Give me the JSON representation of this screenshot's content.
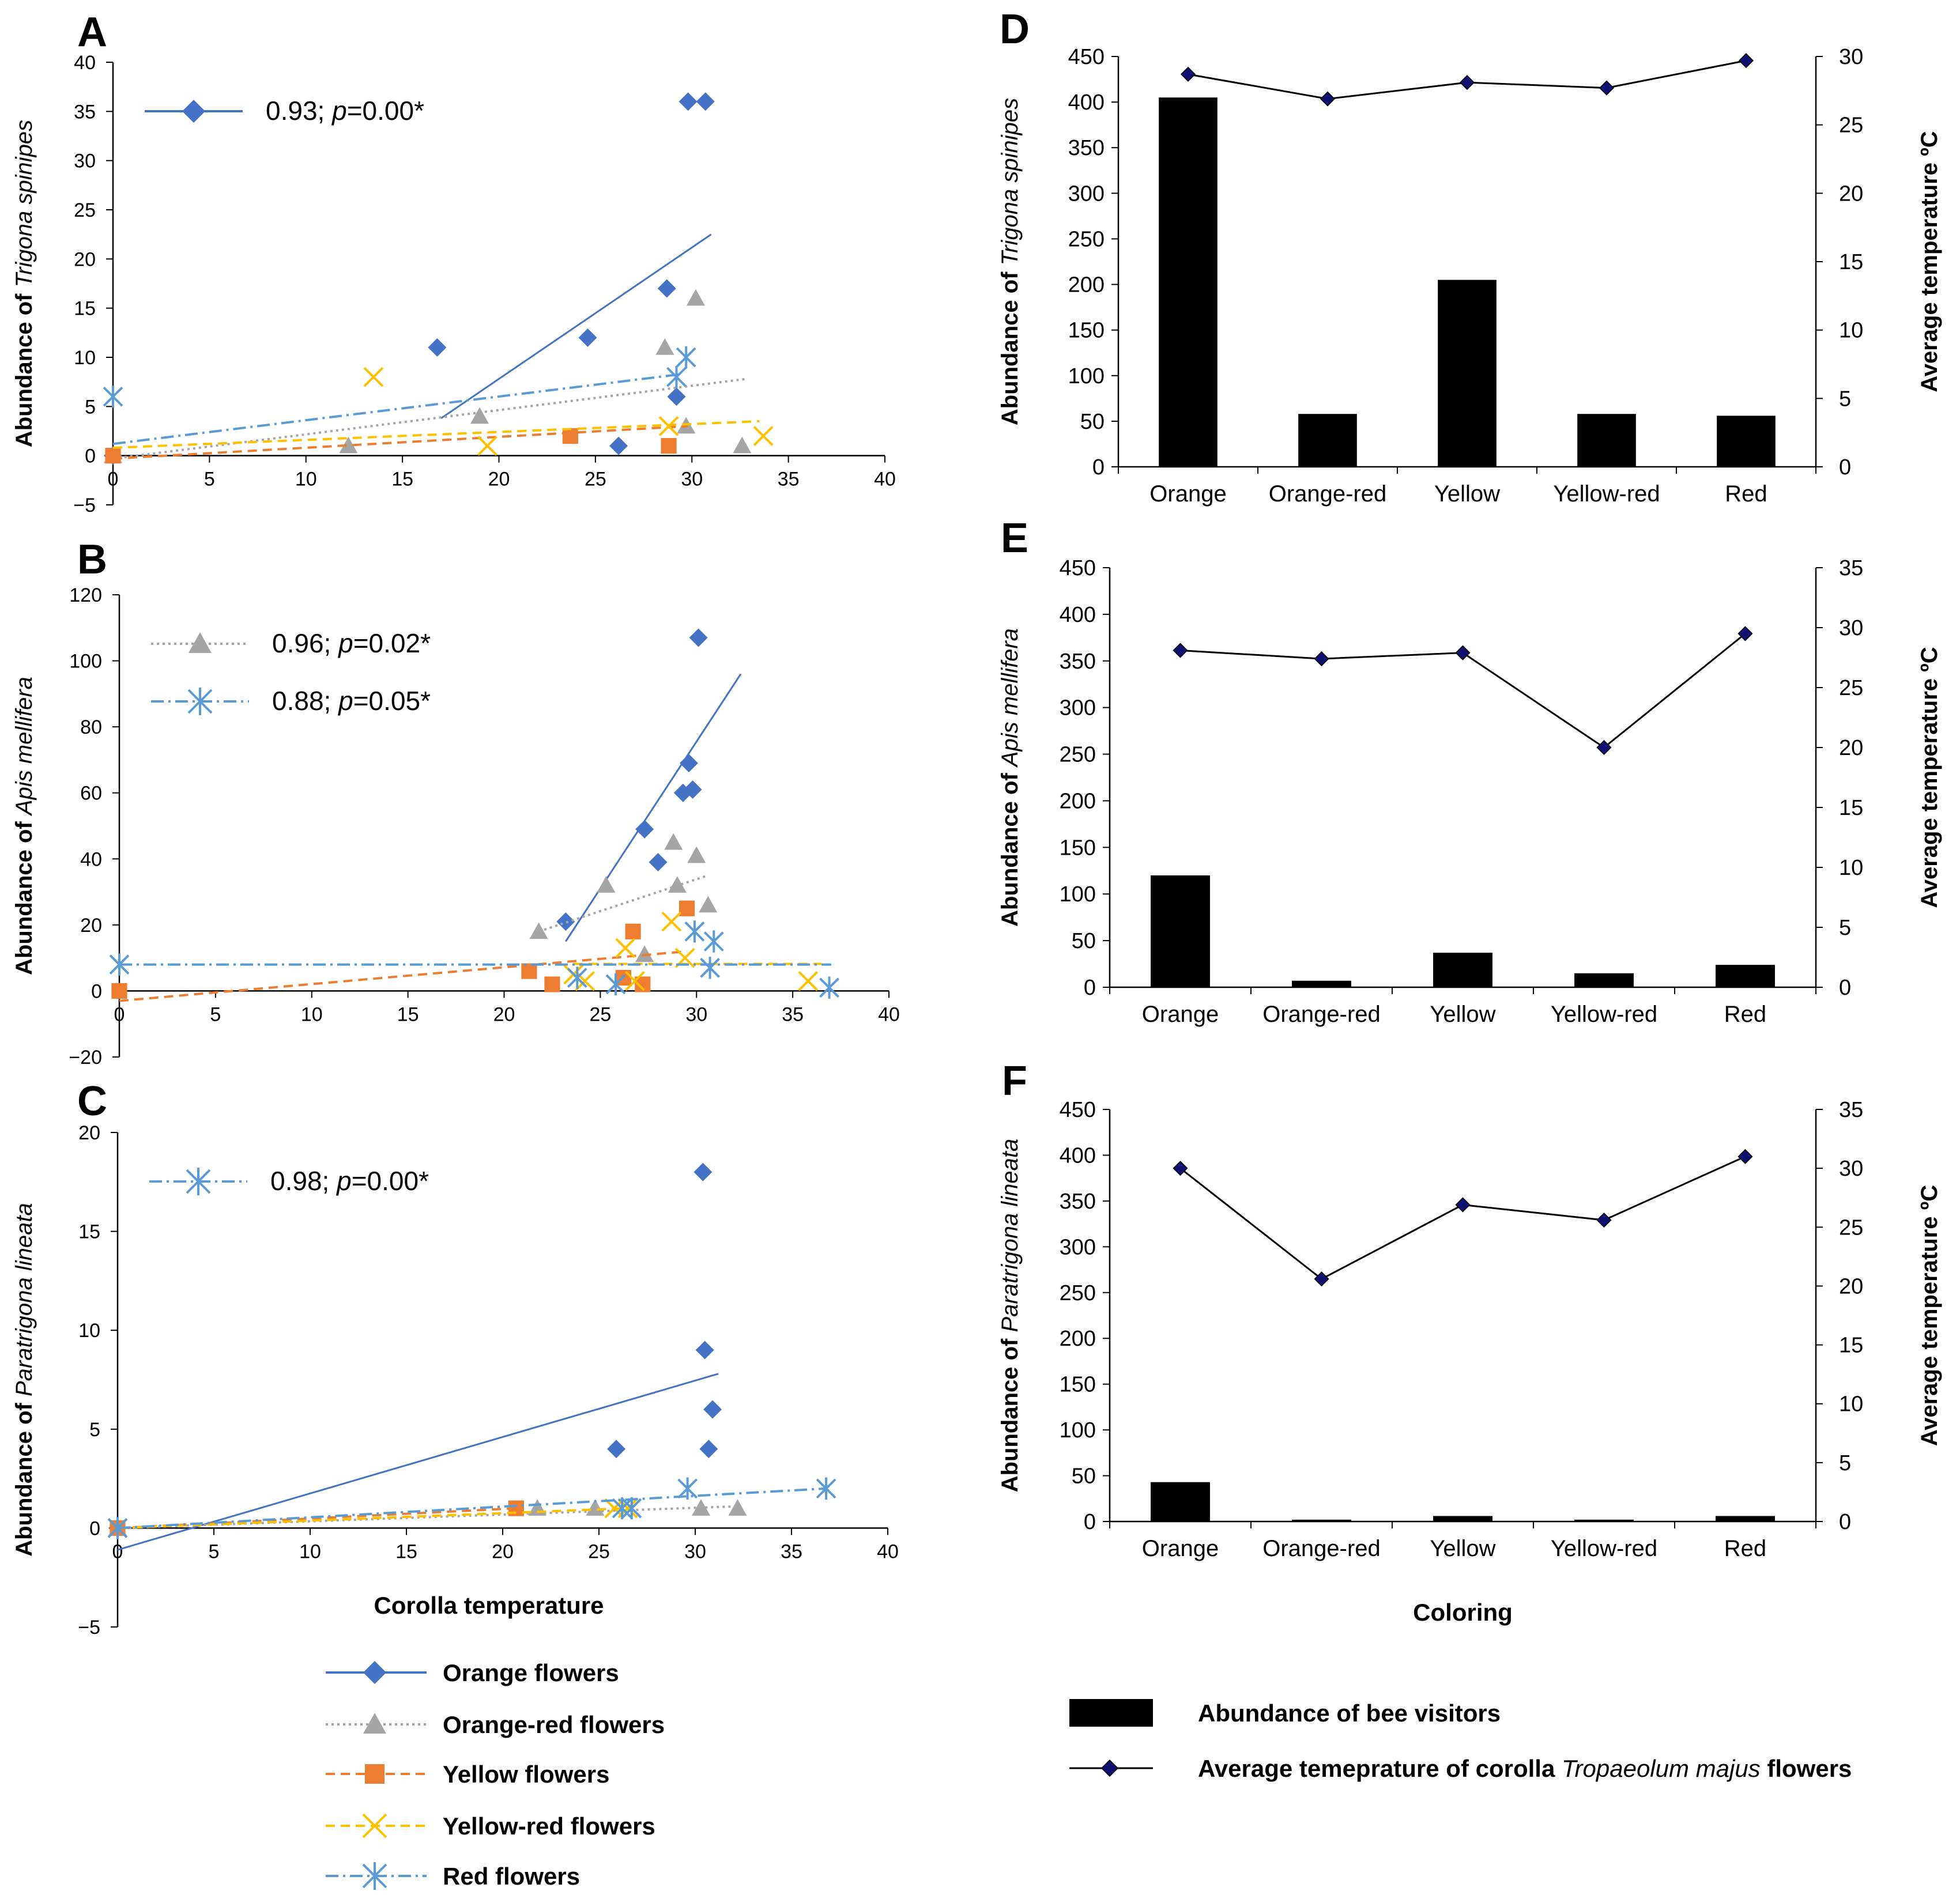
{
  "legend_left": [
    {
      "name": "Orange flowers",
      "color": "#4472C4",
      "marker": "diamond",
      "dash": "solid"
    },
    {
      "name": "Orange-red flowers",
      "color": "#A5A5A5",
      "marker": "triangle",
      "dash": "dotted"
    },
    {
      "name": "Yellow flowers",
      "color": "#ED7D31",
      "marker": "square",
      "dash": "dashed"
    },
    {
      "name": "Yellow-red flowers",
      "color": "#FFC000",
      "marker": "x",
      "dash": "dashed"
    },
    {
      "name": "Red flowers",
      "color": "#5B9BD5",
      "marker": "star",
      "dash": "dashdot"
    }
  ],
  "legend_right": [
    {
      "name": "Abundance of bee visitors",
      "kind": "bar"
    },
    {
      "name_prefix": "Average temeprature of corolla ",
      "name_italic": "Tropaeolum majus",
      "name_suffix": " flowers",
      "kind": "line"
    }
  ],
  "chart_data": [
    {
      "panel": "A",
      "type": "scatter",
      "ylabel_prefix": "Abundance of ",
      "ylabel_italic": "Trigona spinipes",
      "xlabel": "",
      "xlim": [
        0,
        40
      ],
      "ylim": [
        -5,
        40
      ],
      "xticks": [
        "0",
        "5",
        "10",
        "15",
        "20",
        "25",
        "30",
        "35",
        "40"
      ],
      "yticks": [
        "−5",
        "0",
        "5",
        "10",
        "15",
        "20",
        "25",
        "30",
        "35",
        "40"
      ],
      "series": [
        {
          "name": "Orange flowers",
          "points": [
            [
              0,
              0
            ],
            [
              16.8,
              11
            ],
            [
              24.6,
              12
            ],
            [
              26.2,
              1
            ],
            [
              28.7,
              17
            ],
            [
              29.2,
              6
            ],
            [
              29.8,
              36
            ],
            [
              30.7,
              36
            ]
          ],
          "trend": [
            [
              17,
              3.8
            ],
            [
              31,
              22.5
            ]
          ]
        },
        {
          "name": "Orange-red flowers",
          "points": [
            [
              0,
              0
            ],
            [
              12.2,
              1
            ],
            [
              19,
              4
            ],
            [
              28.6,
              11
            ],
            [
              29.7,
              3
            ],
            [
              30.2,
              16
            ],
            [
              32.6,
              1
            ]
          ],
          "trend": [
            [
              0,
              -0.3
            ],
            [
              32.8,
              7.8
            ]
          ]
        },
        {
          "name": "Yellow flowers",
          "points": [
            [
              0,
              0
            ],
            [
              23.7,
              2
            ],
            [
              28.8,
              1
            ]
          ],
          "trend": [
            [
              0,
              -0.3
            ],
            [
              29.8,
              3
            ]
          ]
        },
        {
          "name": "Yellow-red flowers",
          "points": [
            [
              13.5,
              8
            ],
            [
              19.4,
              1
            ],
            [
              28.8,
              3
            ],
            [
              33.7,
              2
            ]
          ],
          "trend": [
            [
              0,
              0.8
            ],
            [
              33.5,
              3.5
            ]
          ]
        },
        {
          "name": "Red flowers",
          "points": [
            [
              0,
              6
            ],
            [
              29.2,
              8
            ],
            [
              29.7,
              10
            ]
          ],
          "trend": [
            [
              0,
              1.2
            ],
            [
              29.5,
              8.3
            ]
          ]
        }
      ],
      "stat_legend": [
        {
          "series": "Orange flowers",
          "r": "0.93",
          "p": "p",
          "rest": "=0.00*"
        }
      ]
    },
    {
      "panel": "B",
      "type": "scatter",
      "ylabel_prefix": "Abundance of ",
      "ylabel_italic": "Apis mellifera",
      "xlabel": "",
      "xlim": [
        0,
        40
      ],
      "ylim": [
        -20,
        120
      ],
      "xticks": [
        "0",
        "5",
        "10",
        "15",
        "20",
        "25",
        "30",
        "35",
        "40"
      ],
      "yticks": [
        "−20",
        "0",
        "20",
        "40",
        "60",
        "80",
        "100",
        "120"
      ],
      "series": [
        {
          "name": "Orange flowers",
          "points": [
            [
              23.2,
              21
            ],
            [
              27.3,
              49
            ],
            [
              28,
              39
            ],
            [
              29.3,
              60
            ],
            [
              29.6,
              69
            ],
            [
              29.8,
              61
            ],
            [
              30.1,
              107
            ]
          ],
          "trend": [
            [
              23.2,
              15
            ],
            [
              32.3,
              96
            ]
          ]
        },
        {
          "name": "Orange-red flowers",
          "points": [
            [
              21.8,
              18
            ],
            [
              25.3,
              32
            ],
            [
              27.3,
              11
            ],
            [
              28.8,
              45
            ],
            [
              29,
              32
            ],
            [
              30,
              41
            ],
            [
              30.6,
              26
            ]
          ],
          "trend": [
            [
              21.8,
              18
            ],
            [
              30.6,
              35
            ]
          ]
        },
        {
          "name": "Yellow flowers",
          "points": [
            [
              0,
              0
            ],
            [
              21.3,
              6
            ],
            [
              22.5,
              2
            ],
            [
              26.2,
              4
            ],
            [
              26.7,
              18
            ],
            [
              27.2,
              2
            ],
            [
              29.5,
              25
            ]
          ],
          "trend": [
            [
              0,
              -3
            ],
            [
              29.5,
              12
            ]
          ]
        },
        {
          "name": "Yellow-red flowers",
          "points": [
            [
              23.6,
              5
            ],
            [
              24.2,
              3
            ],
            [
              26.3,
              13
            ],
            [
              26.8,
              3
            ],
            [
              28.7,
              21
            ],
            [
              29.4,
              10
            ],
            [
              35.8,
              3
            ]
          ],
          "trend": [
            [
              23.6,
              8.2
            ],
            [
              36.5,
              8.2
            ]
          ]
        },
        {
          "name": "Red flowers",
          "points": [
            [
              0,
              8
            ],
            [
              23.8,
              4
            ],
            [
              25.8,
              2
            ],
            [
              29.9,
              18
            ],
            [
              30.7,
              7
            ],
            [
              30.9,
              15
            ],
            [
              36.9,
              1
            ]
          ],
          "trend": [
            [
              0,
              8
            ],
            [
              37,
              8
            ]
          ]
        }
      ],
      "stat_legend": [
        {
          "series": "Orange-red flowers",
          "r": "0.96",
          "p": "p",
          "rest": "=0.02*"
        },
        {
          "series": "Red flowers",
          "r": "0.88",
          "p": "p",
          "rest": "=0.05*"
        }
      ]
    },
    {
      "panel": "C",
      "type": "scatter",
      "ylabel_prefix": "Abundance of ",
      "ylabel_italic": "Paratrigona lineata",
      "xlabel": "Corolla temperature",
      "xlim": [
        0,
        40
      ],
      "ylim": [
        -5,
        20
      ],
      "xticks": [
        "0",
        "5",
        "10",
        "15",
        "20",
        "25",
        "30",
        "35",
        "40"
      ],
      "yticks": [
        "−5",
        "0",
        "5",
        "10",
        "15",
        "20"
      ],
      "series": [
        {
          "name": "Orange flowers",
          "points": [
            [
              0,
              0
            ],
            [
              25.9,
              4
            ],
            [
              30.4,
              18
            ],
            [
              30.5,
              9
            ],
            [
              30.7,
              4
            ],
            [
              30.9,
              6
            ]
          ],
          "trend": [
            [
              0,
              -1.1
            ],
            [
              31.2,
              7.8
            ]
          ]
        },
        {
          "name": "Orange-red flowers",
          "points": [
            [
              0,
              0
            ],
            [
              21.8,
              1
            ],
            [
              24.8,
              1
            ],
            [
              30.3,
              1
            ],
            [
              32.2,
              1
            ]
          ],
          "trend": [
            [
              0,
              0
            ],
            [
              32.2,
              1.1
            ]
          ]
        },
        {
          "name": "Yellow flowers",
          "points": [
            [
              0,
              0
            ],
            [
              20.7,
              1
            ]
          ],
          "trend": [
            [
              0,
              0
            ],
            [
              20.7,
              1
            ]
          ]
        },
        {
          "name": "Yellow-red flowers",
          "points": [
            [
              0,
              0
            ],
            [
              25.8,
              1
            ],
            [
              26.5,
              1
            ]
          ],
          "trend": [
            [
              0,
              0
            ],
            [
              26.5,
              1
            ]
          ]
        },
        {
          "name": "Red flowers",
          "points": [
            [
              0,
              0
            ],
            [
              26.2,
              1
            ],
            [
              26.7,
              1
            ],
            [
              29.6,
              2
            ],
            [
              36.8,
              2
            ]
          ],
          "trend": [
            [
              0,
              0
            ],
            [
              36.8,
              2
            ]
          ]
        }
      ],
      "stat_legend": [
        {
          "series": "Red flowers",
          "r": "0.98",
          "p": "p",
          "rest": "=0.00*"
        }
      ]
    },
    {
      "panel": "D",
      "type": "bar+line",
      "ylabel_prefix": "Abundance of ",
      "ylabel_italic": "Trigona spinipes",
      "y2label": "Average temperature ºC",
      "xlabel": "",
      "categories": [
        "Orange",
        "Orange-red",
        "Yellow",
        "Yellow-red",
        "Red"
      ],
      "bars": [
        405,
        58,
        205,
        58,
        56
      ],
      "line": [
        28.7,
        26.9,
        28.1,
        27.7,
        29.7
      ],
      "ylim": [
        0,
        450
      ],
      "y2lim": [
        0,
        30
      ],
      "yticks": [
        "0",
        "50",
        "100",
        "150",
        "200",
        "250",
        "300",
        "350",
        "400",
        "450"
      ],
      "y2ticks": [
        "0",
        "5",
        "10",
        "15",
        "20",
        "25",
        "30"
      ]
    },
    {
      "panel": "E",
      "type": "bar+line",
      "ylabel_prefix": "Abundance of ",
      "ylabel_italic": "Apis mellifera",
      "y2label": "Average temperature ºC",
      "xlabel": "",
      "categories": [
        "Orange",
        "Orange-red",
        "Yellow",
        "Yellow-red",
        "Red"
      ],
      "bars": [
        120,
        7,
        37,
        15,
        24
      ],
      "line": [
        28.1,
        27.4,
        27.9,
        20,
        29.5
      ],
      "ylim": [
        0,
        450
      ],
      "y2lim": [
        0,
        35
      ],
      "yticks": [
        "0",
        "50",
        "100",
        "150",
        "200",
        "250",
        "300",
        "350",
        "400",
        "450"
      ],
      "y2ticks": [
        "0",
        "5",
        "10",
        "15",
        "20",
        "25",
        "30",
        "35"
      ]
    },
    {
      "panel": "F",
      "type": "bar+line",
      "ylabel_prefix": "Abundance of ",
      "ylabel_italic": "Paratrigona lineata",
      "y2label": "Average temperature ºC",
      "xlabel": "Coloring",
      "categories": [
        "Orange",
        "Orange-red",
        "Yellow",
        "Yellow-red",
        "Red"
      ],
      "bars": [
        43,
        2,
        6,
        2,
        6
      ],
      "line": [
        30,
        20.6,
        26.9,
        25.6,
        31
      ],
      "ylim": [
        0,
        450
      ],
      "y2lim": [
        0,
        35
      ],
      "yticks": [
        "0",
        "50",
        "100",
        "150",
        "200",
        "250",
        "300",
        "350",
        "400",
        "450"
      ],
      "y2ticks": [
        "0",
        "5",
        "10",
        "15",
        "20",
        "25",
        "30",
        "35"
      ]
    }
  ]
}
